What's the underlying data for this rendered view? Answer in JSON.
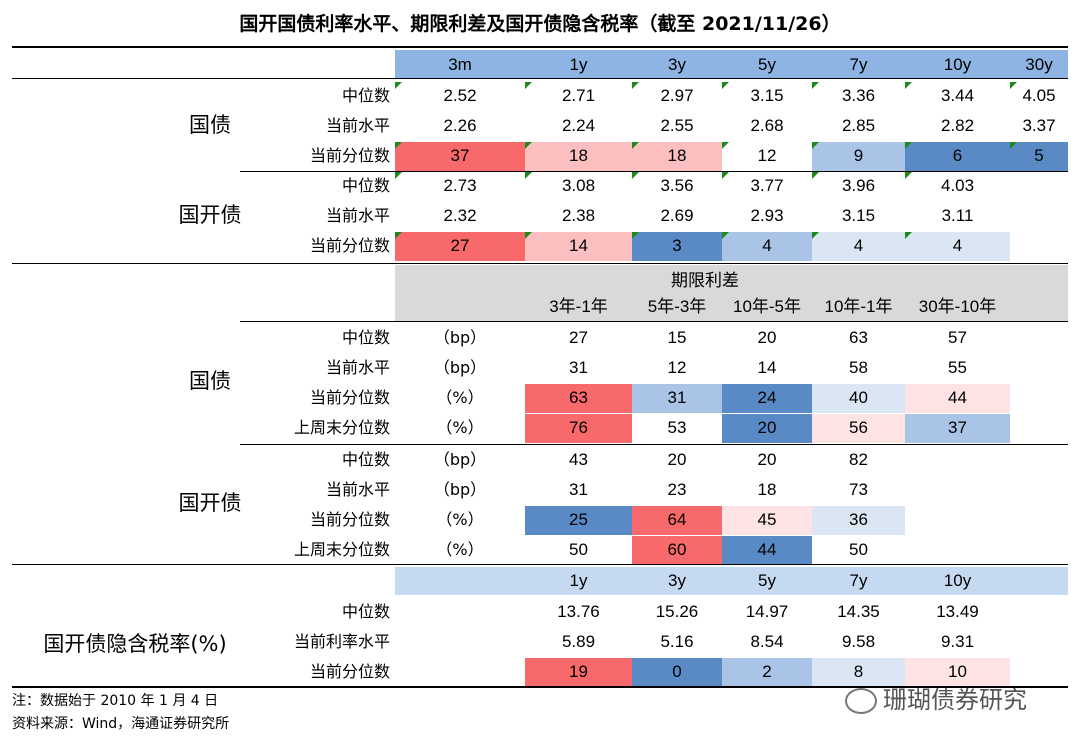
{
  "title": "国开国债利率水平、期限利差及国开债隐含税率（截至 2021/11/26）",
  "sec1": {
    "headers": [
      "3m",
      "1y",
      "3y",
      "5y",
      "7y",
      "10y",
      "30y"
    ],
    "guozhai": {
      "name": "国债",
      "rows": [
        {
          "label": "中位数",
          "values": [
            "2.52",
            "2.71",
            "2.97",
            "3.15",
            "3.36",
            "3.44",
            "4.05"
          ]
        },
        {
          "label": "当前水平",
          "values": [
            "2.26",
            "2.24",
            "2.55",
            "2.68",
            "2.85",
            "2.82",
            "3.37"
          ]
        },
        {
          "label": "当前分位数",
          "values": [
            "37",
            "18",
            "18",
            "12",
            "9",
            "6",
            "5"
          ]
        }
      ]
    },
    "guokai": {
      "name": "国开债",
      "rows": [
        {
          "label": "中位数",
          "values": [
            "2.73",
            "3.08",
            "3.56",
            "3.77",
            "3.96",
            "4.03",
            ""
          ]
        },
        {
          "label": "当前水平",
          "values": [
            "2.32",
            "2.38",
            "2.69",
            "2.93",
            "3.15",
            "3.11",
            ""
          ]
        },
        {
          "label": "当前分位数",
          "values": [
            "27",
            "14",
            "3",
            "4",
            "4",
            "4",
            ""
          ]
        }
      ]
    }
  },
  "sec2": {
    "header_title": "期限利差",
    "headers": [
      "3年-1年",
      "5年-3年",
      "10年-5年",
      "10年-1年",
      "30年-10年"
    ],
    "guozhai": {
      "name": "国债",
      "rows": [
        {
          "label": "中位数",
          "unit": "（bp）",
          "values": [
            "27",
            "15",
            "20",
            "63",
            "57"
          ]
        },
        {
          "label": "当前水平",
          "unit": "（bp）",
          "values": [
            "31",
            "12",
            "14",
            "58",
            "55"
          ]
        },
        {
          "label": "当前分位数",
          "unit": "（%）",
          "values": [
            "63",
            "31",
            "24",
            "40",
            "44"
          ]
        },
        {
          "label": "上周末分位数",
          "unit": "（%）",
          "values": [
            "76",
            "53",
            "20",
            "56",
            "37"
          ]
        }
      ]
    },
    "guokai": {
      "name": "国开债",
      "rows": [
        {
          "label": "中位数",
          "unit": "（bp）",
          "values": [
            "43",
            "20",
            "20",
            "82",
            ""
          ]
        },
        {
          "label": "当前水平",
          "unit": "（bp）",
          "values": [
            "31",
            "23",
            "18",
            "73",
            ""
          ]
        },
        {
          "label": "当前分位数",
          "unit": "（%）",
          "values": [
            "25",
            "64",
            "45",
            "36",
            ""
          ]
        },
        {
          "label": "上周末分位数",
          "unit": "（%）",
          "values": [
            "50",
            "60",
            "44",
            "50",
            ""
          ]
        }
      ]
    }
  },
  "sec3": {
    "name": "国开债隐含税率(%)",
    "headers": [
      "1y",
      "3y",
      "5y",
      "7y",
      "10y"
    ],
    "rows": [
      {
        "label": "中位数",
        "values": [
          "13.76",
          "15.26",
          "14.97",
          "14.35",
          "13.49"
        ]
      },
      {
        "label": "当前利率水平",
        "values": [
          "5.89",
          "5.16",
          "8.54",
          "9.58",
          "9.31"
        ]
      },
      {
        "label": "当前分位数",
        "values": [
          "19",
          "0",
          "2",
          "8",
          "10"
        ]
      }
    ]
  },
  "notes": {
    "note1": "注：数据始于 2010 年 1 月 4 日",
    "note2": "资料来源：Wind，海通证券研究所"
  },
  "watermark": "珊瑚债券研究",
  "colors": {
    "header_blue": "#8db4e2",
    "header_light_blue": "#c5d9f1",
    "header_gray": "#d9d9d9",
    "red": "#f8696b",
    "light_red": "#fcbfc0",
    "pale_red": "#fde3e4",
    "blue": "#5a8ac6",
    "light_blue": "#a9c4e6",
    "pale_blue": "#dbe6f4",
    "marker_green": "#1e8a1e"
  }
}
